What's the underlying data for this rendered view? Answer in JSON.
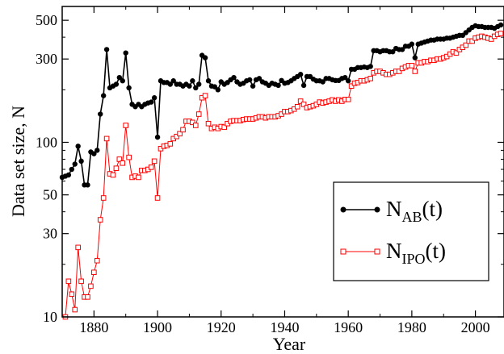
{
  "chart_data": {
    "type": "line",
    "title": "",
    "xlabel": "Year",
    "ylabel": "Data set size, N",
    "xlim": [
      1870,
      2009
    ],
    "ylim": [
      10,
      600
    ],
    "yscale": "log",
    "xticks": [
      1880,
      1900,
      1920,
      1940,
      1960,
      1980,
      2000
    ],
    "yticks": [
      10,
      30,
      50,
      100,
      300,
      500
    ],
    "grid": false,
    "legend_position": "lower-right",
    "series": [
      {
        "name_main": "N",
        "name_sub": "AB",
        "name_suffix": "(t)",
        "color": "#000000",
        "marker": "filled-circle",
        "points": [
          [
            1870,
            63
          ],
          [
            1871,
            64
          ],
          [
            1872,
            65
          ],
          [
            1873,
            70
          ],
          [
            1874,
            75
          ],
          [
            1875,
            95
          ],
          [
            1876,
            78
          ],
          [
            1877,
            57
          ],
          [
            1878,
            57
          ],
          [
            1879,
            88
          ],
          [
            1880,
            86
          ],
          [
            1881,
            90
          ],
          [
            1882,
            145
          ],
          [
            1883,
            185
          ],
          [
            1884,
            340
          ],
          [
            1885,
            205
          ],
          [
            1886,
            210
          ],
          [
            1887,
            215
          ],
          [
            1888,
            235
          ],
          [
            1889,
            225
          ],
          [
            1890,
            325
          ],
          [
            1891,
            205
          ],
          [
            1892,
            165
          ],
          [
            1893,
            160
          ],
          [
            1894,
            165
          ],
          [
            1895,
            160
          ],
          [
            1896,
            165
          ],
          [
            1897,
            168
          ],
          [
            1898,
            170
          ],
          [
            1899,
            180
          ],
          [
            1900,
            107
          ],
          [
            1901,
            225
          ],
          [
            1902,
            220
          ],
          [
            1903,
            220
          ],
          [
            1904,
            215
          ],
          [
            1905,
            225
          ],
          [
            1906,
            215
          ],
          [
            1907,
            215
          ],
          [
            1908,
            210
          ],
          [
            1909,
            215
          ],
          [
            1910,
            210
          ],
          [
            1911,
            225
          ],
          [
            1912,
            205
          ],
          [
            1913,
            215
          ],
          [
            1914,
            315
          ],
          [
            1915,
            305
          ],
          [
            1916,
            225
          ],
          [
            1917,
            210
          ],
          [
            1918,
            208
          ],
          [
            1919,
            200
          ],
          [
            1920,
            222
          ],
          [
            1921,
            215
          ],
          [
            1922,
            220
          ],
          [
            1923,
            228
          ],
          [
            1924,
            235
          ],
          [
            1925,
            222
          ],
          [
            1926,
            215
          ],
          [
            1927,
            218
          ],
          [
            1928,
            225
          ],
          [
            1929,
            228
          ],
          [
            1930,
            210
          ],
          [
            1931,
            228
          ],
          [
            1932,
            232
          ],
          [
            1933,
            222
          ],
          [
            1934,
            218
          ],
          [
            1935,
            212
          ],
          [
            1936,
            218
          ],
          [
            1937,
            215
          ],
          [
            1938,
            212
          ],
          [
            1939,
            226
          ],
          [
            1940,
            218
          ],
          [
            1941,
            220
          ],
          [
            1942,
            225
          ],
          [
            1943,
            232
          ],
          [
            1944,
            238
          ],
          [
            1945,
            245
          ],
          [
            1946,
            212
          ],
          [
            1947,
            238
          ],
          [
            1948,
            238
          ],
          [
            1949,
            230
          ],
          [
            1950,
            225
          ],
          [
            1951,
            225
          ],
          [
            1952,
            222
          ],
          [
            1953,
            232
          ],
          [
            1954,
            232
          ],
          [
            1955,
            228
          ],
          [
            1956,
            226
          ],
          [
            1957,
            226
          ],
          [
            1958,
            232
          ],
          [
            1959,
            235
          ],
          [
            1960,
            225
          ],
          [
            1961,
            262
          ],
          [
            1962,
            262
          ],
          [
            1963,
            268
          ],
          [
            1964,
            268
          ],
          [
            1965,
            270
          ],
          [
            1966,
            268
          ],
          [
            1967,
            272
          ],
          [
            1968,
            335
          ],
          [
            1969,
            335
          ],
          [
            1970,
            330
          ],
          [
            1971,
            335
          ],
          [
            1972,
            335
          ],
          [
            1973,
            330
          ],
          [
            1974,
            330
          ],
          [
            1975,
            345
          ],
          [
            1976,
            340
          ],
          [
            1977,
            340
          ],
          [
            1978,
            355
          ],
          [
            1979,
            355
          ],
          [
            1980,
            365
          ],
          [
            1981,
            305
          ],
          [
            1982,
            365
          ],
          [
            1983,
            370
          ],
          [
            1984,
            375
          ],
          [
            1985,
            380
          ],
          [
            1986,
            385
          ],
          [
            1987,
            385
          ],
          [
            1988,
            390
          ],
          [
            1989,
            390
          ],
          [
            1990,
            390
          ],
          [
            1991,
            395
          ],
          [
            1992,
            395
          ],
          [
            1993,
            400
          ],
          [
            1994,
            405
          ],
          [
            1995,
            410
          ],
          [
            1996,
            410
          ],
          [
            1997,
            425
          ],
          [
            1998,
            440
          ],
          [
            1999,
            455
          ],
          [
            2000,
            465
          ],
          [
            2001,
            460
          ],
          [
            2002,
            460
          ],
          [
            2003,
            455
          ],
          [
            2004,
            455
          ],
          [
            2005,
            455
          ],
          [
            2006,
            450
          ],
          [
            2007,
            460
          ],
          [
            2008,
            470
          ]
        ]
      },
      {
        "name_main": "N",
        "name_sub": "IPO",
        "name_suffix": "(t)",
        "color": "#ff0000",
        "marker": "open-square",
        "points": [
          [
            1871,
            10
          ],
          [
            1872,
            16
          ],
          [
            1873,
            13.5
          ],
          [
            1874,
            11
          ],
          [
            1875,
            25
          ],
          [
            1876,
            16
          ],
          [
            1877,
            13
          ],
          [
            1878,
            13
          ],
          [
            1879,
            15
          ],
          [
            1880,
            18
          ],
          [
            1881,
            21
          ],
          [
            1882,
            36
          ],
          [
            1883,
            48
          ],
          [
            1884,
            105
          ],
          [
            1885,
            66
          ],
          [
            1886,
            65
          ],
          [
            1887,
            71
          ],
          [
            1888,
            80
          ],
          [
            1889,
            76
          ],
          [
            1890,
            125
          ],
          [
            1891,
            82
          ],
          [
            1892,
            63
          ],
          [
            1893,
            64
          ],
          [
            1894,
            63
          ],
          [
            1895,
            69
          ],
          [
            1896,
            69
          ],
          [
            1897,
            70
          ],
          [
            1898,
            72
          ],
          [
            1899,
            78
          ],
          [
            1900,
            48
          ],
          [
            1901,
            92
          ],
          [
            1902,
            95
          ],
          [
            1903,
            96
          ],
          [
            1904,
            98
          ],
          [
            1905,
            105
          ],
          [
            1906,
            108
          ],
          [
            1907,
            112
          ],
          [
            1908,
            118
          ],
          [
            1909,
            132
          ],
          [
            1910,
            132
          ],
          [
            1911,
            130
          ],
          [
            1912,
            125
          ],
          [
            1913,
            145
          ],
          [
            1914,
            180
          ],
          [
            1915,
            185
          ],
          [
            1916,
            128
          ],
          [
            1917,
            120
          ],
          [
            1918,
            122
          ],
          [
            1919,
            120
          ],
          [
            1920,
            123
          ],
          [
            1921,
            122
          ],
          [
            1922,
            128
          ],
          [
            1923,
            132
          ],
          [
            1924,
            133
          ],
          [
            1925,
            133
          ],
          [
            1926,
            133
          ],
          [
            1927,
            135
          ],
          [
            1928,
            136
          ],
          [
            1929,
            136
          ],
          [
            1930,
            136
          ],
          [
            1931,
            138
          ],
          [
            1932,
            140
          ],
          [
            1933,
            140
          ],
          [
            1934,
            138
          ],
          [
            1935,
            140
          ],
          [
            1936,
            140
          ],
          [
            1937,
            140
          ],
          [
            1938,
            142
          ],
          [
            1939,
            145
          ],
          [
            1940,
            150
          ],
          [
            1941,
            150
          ],
          [
            1942,
            152
          ],
          [
            1943,
            155
          ],
          [
            1944,
            160
          ],
          [
            1945,
            172
          ],
          [
            1946,
            165
          ],
          [
            1947,
            158
          ],
          [
            1948,
            160
          ],
          [
            1949,
            162
          ],
          [
            1950,
            165
          ],
          [
            1951,
            170
          ],
          [
            1952,
            168
          ],
          [
            1953,
            170
          ],
          [
            1954,
            172
          ],
          [
            1955,
            175
          ],
          [
            1956,
            172
          ],
          [
            1957,
            175
          ],
          [
            1958,
            172
          ],
          [
            1959,
            176
          ],
          [
            1960,
            176
          ],
          [
            1961,
            210
          ],
          [
            1962,
            218
          ],
          [
            1963,
            220
          ],
          [
            1964,
            225
          ],
          [
            1965,
            225
          ],
          [
            1966,
            228
          ],
          [
            1967,
            232
          ],
          [
            1968,
            250
          ],
          [
            1969,
            255
          ],
          [
            1970,
            255
          ],
          [
            1971,
            250
          ],
          [
            1972,
            245
          ],
          [
            1973,
            245
          ],
          [
            1974,
            250
          ],
          [
            1975,
            255
          ],
          [
            1976,
            255
          ],
          [
            1977,
            265
          ],
          [
            1978,
            270
          ],
          [
            1979,
            275
          ],
          [
            1980,
            275
          ],
          [
            1981,
            255
          ],
          [
            1982,
            285
          ],
          [
            1983,
            285
          ],
          [
            1984,
            290
          ],
          [
            1985,
            290
          ],
          [
            1986,
            295
          ],
          [
            1987,
            295
          ],
          [
            1988,
            300
          ],
          [
            1989,
            300
          ],
          [
            1990,
            305
          ],
          [
            1991,
            310
          ],
          [
            1992,
            320
          ],
          [
            1993,
            330
          ],
          [
            1994,
            325
          ],
          [
            1995,
            340
          ],
          [
            1996,
            350
          ],
          [
            1997,
            360
          ],
          [
            1998,
            380
          ],
          [
            1999,
            380
          ],
          [
            2000,
            395
          ],
          [
            2001,
            400
          ],
          [
            2002,
            405
          ],
          [
            2003,
            400
          ],
          [
            2004,
            395
          ],
          [
            2005,
            390
          ],
          [
            2006,
            405
          ],
          [
            2007,
            415
          ],
          [
            2008,
            420
          ]
        ]
      }
    ]
  }
}
